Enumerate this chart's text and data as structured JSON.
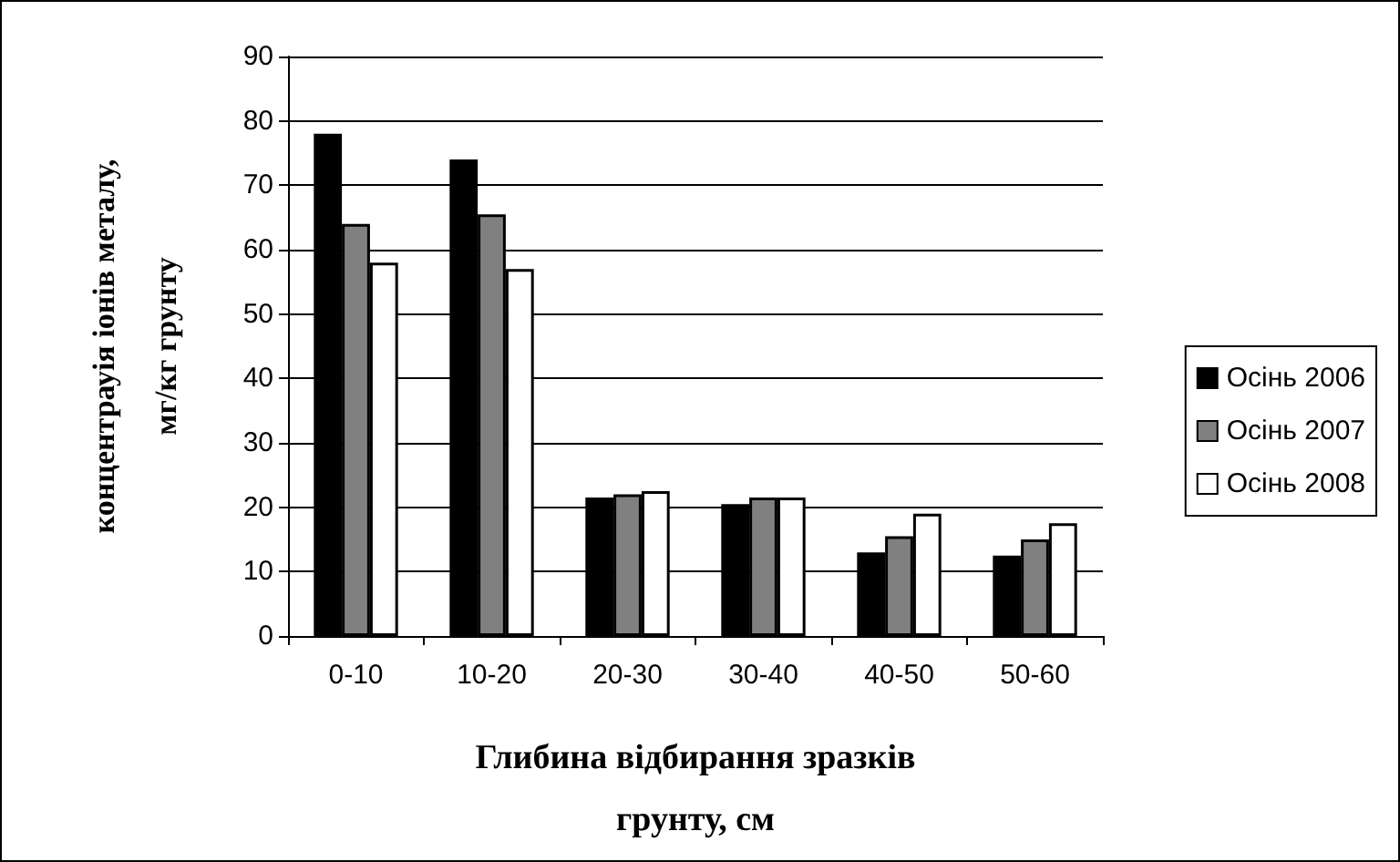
{
  "chart_data": {
    "type": "bar",
    "xlabel": "Глибина відбирання зразків\nгрунту, см",
    "ylabel": "концентрауія іонів металу,\nмг/кг грунту",
    "categories": [
      "0-10",
      "10-20",
      "20-30",
      "30-40",
      "40-50",
      "50-60"
    ],
    "series": [
      {
        "name": "Осінь 2006",
        "color": "#000000",
        "values": [
          78,
          74,
          21.5,
          20.5,
          13,
          12.5
        ]
      },
      {
        "name": "Осінь 2007",
        "color": "#808080",
        "values": [
          64,
          65.5,
          22,
          21.5,
          15.5,
          15
        ]
      },
      {
        "name": "Осінь 2008",
        "color": "#ffffff",
        "values": [
          58,
          57,
          22.5,
          21.5,
          19,
          17.5
        ]
      }
    ],
    "ylim": [
      0,
      90
    ],
    "yticks": [
      0,
      10,
      20,
      30,
      40,
      50,
      60,
      70,
      80,
      90
    ],
    "grid": "y",
    "legend": "right"
  }
}
